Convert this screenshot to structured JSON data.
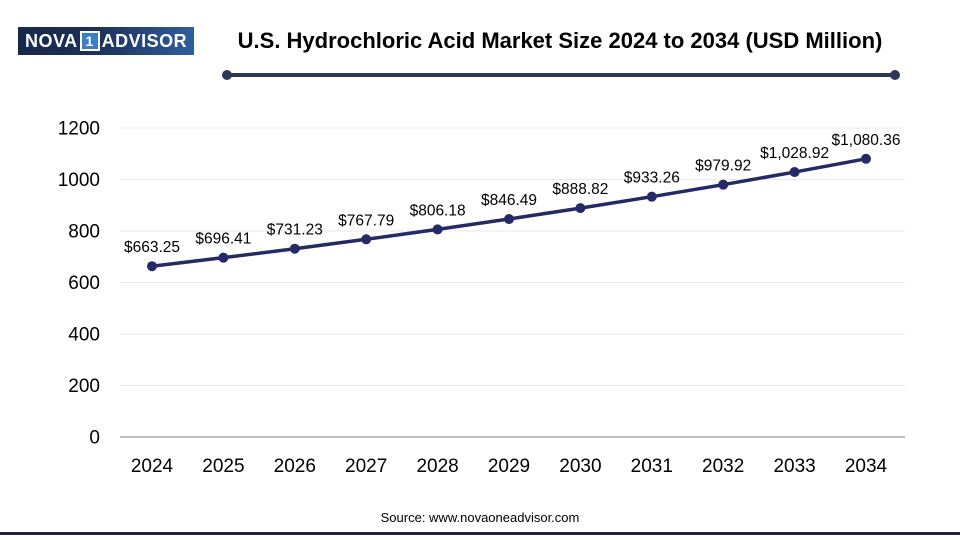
{
  "logo": {
    "part1": "NOVA",
    "part2": "1",
    "part3": "ADVISOR"
  },
  "header": {
    "title": "U.S. Hydrochloric Acid Market Size 2024 to 2034 (USD Million)"
  },
  "chart_data": {
    "type": "line",
    "title": "U.S. Hydrochloric Acid Market Size 2024 to 2034 (USD Million)",
    "xlabel": "",
    "ylabel": "",
    "categories": [
      "2024",
      "2025",
      "2026",
      "2027",
      "2028",
      "2029",
      "2030",
      "2031",
      "2032",
      "2033",
      "2034"
    ],
    "values": [
      663.25,
      696.41,
      731.23,
      767.79,
      806.18,
      846.49,
      888.82,
      933.26,
      979.92,
      1028.92,
      1080.36
    ],
    "point_labels": [
      "$663.25",
      "$696.41",
      "$731.23",
      "$767.79",
      "$806.18",
      "$846.49",
      "$888.82",
      "$933.26",
      "$979.92",
      "$1,028.92",
      "$1,080.36"
    ],
    "y_ticks": [
      0,
      200,
      400,
      600,
      800,
      1000,
      1200
    ],
    "ylim": [
      0,
      1200
    ],
    "grid": true,
    "legend": "none",
    "series_name": "U.S. Hydrochloric Acid Market Size (USD Million)"
  },
  "footer": {
    "source": "Source: www.novaoneadvisor.com"
  },
  "colors": {
    "line": "#242a66",
    "marker": "#242a66",
    "gridline": "#e8e8e8",
    "zero_axis": "#a8a8a8",
    "tick_text": "#000000",
    "data_label_text": "#000000",
    "divider_navy": "#2d3656",
    "logo_dark": "#18284a",
    "logo_mid_blue": "#2f5f9d",
    "logo_box_blue": "#3d7fc4",
    "bottom_rule": "#1f2340"
  }
}
